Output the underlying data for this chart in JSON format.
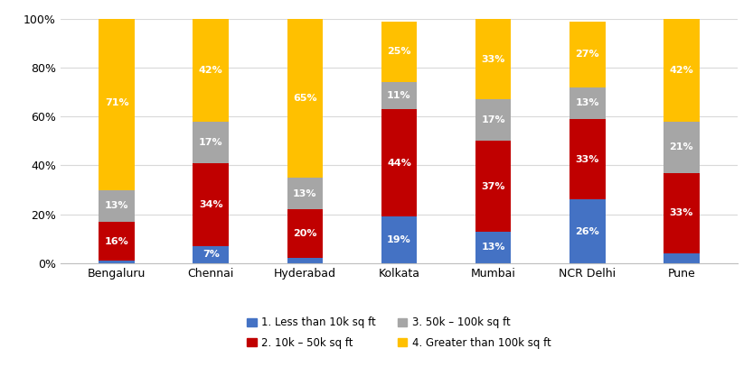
{
  "categories": [
    "Bengaluru",
    "Chennai",
    "Hyderabad",
    "Kolkata",
    "Mumbai",
    "NCR Delhi",
    "Pune"
  ],
  "series": [
    {
      "label": "1. Less than 10k sq ft",
      "color": "#4472C4",
      "values": [
        1,
        7,
        2,
        19,
        13,
        26,
        4
      ]
    },
    {
      "label": "2. 10k – 50k sq ft",
      "color": "#C00000",
      "values": [
        16,
        34,
        20,
        44,
        37,
        33,
        33
      ]
    },
    {
      "label": "3. 50k – 100k sq ft",
      "color": "#A6A6A6",
      "values": [
        13,
        17,
        13,
        11,
        17,
        13,
        21
      ]
    },
    {
      "label": "4. Greater than 100k sq ft",
      "color": "#FFC000",
      "values": [
        71,
        42,
        65,
        25,
        33,
        27,
        42
      ]
    }
  ],
  "ylim": [
    0,
    100
  ],
  "yticks": [
    0,
    20,
    40,
    60,
    80,
    100
  ],
  "ytick_labels": [
    "0%",
    "20%",
    "40%",
    "60%",
    "80%",
    "100%"
  ],
  "bar_width": 0.38,
  "background_color": "#FFFFFF",
  "label_fontsize": 8,
  "legend_fontsize": 8.5,
  "tick_fontsize": 9,
  "label_color_light": "#FFFFFF",
  "grid_color": "#D9D9D9",
  "spine_color": "#BFBFBF"
}
